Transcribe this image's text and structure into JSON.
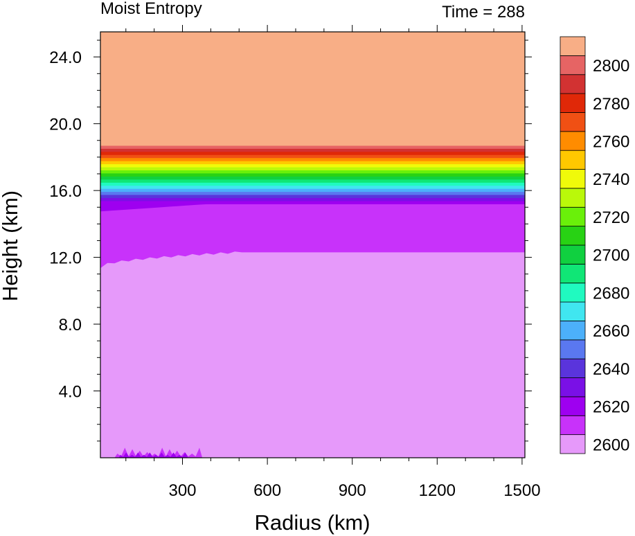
{
  "chart_data": {
    "type": "heatmap",
    "title_left": "Moist Entropy",
    "title_right": "Time = 288",
    "xlabel": "Radius (km)",
    "ylabel": "Height (km)",
    "xlim": [
      10,
      1510
    ],
    "ylim": [
      0,
      25.5
    ],
    "x_ticks": [
      300,
      600,
      900,
      1200,
      1500
    ],
    "x_tick_labels": [
      "300",
      "600",
      "900",
      "1200",
      "1500"
    ],
    "y_ticks": [
      4,
      8,
      12,
      16,
      20,
      24
    ],
    "y_tick_labels": [
      "4.0",
      "8.0",
      "12.0",
      "16.0",
      "20.0",
      "24.0"
    ],
    "colorbar": {
      "levels": [
        2600,
        2610,
        2620,
        2630,
        2640,
        2650,
        2660,
        2670,
        2680,
        2690,
        2700,
        2710,
        2720,
        2730,
        2740,
        2750,
        2760,
        2770,
        2780,
        2790,
        2800
      ],
      "labels": [
        "2600",
        "2620",
        "2640",
        "2660",
        "2680",
        "2700",
        "2720",
        "2740",
        "2760",
        "2780",
        "2800"
      ],
      "colors": [
        "#E699FA",
        "#C832FA",
        "#9E00F0",
        "#7A10E6",
        "#5A34DC",
        "#5A78F0",
        "#4CB0FA",
        "#40E6F0",
        "#20FAC0",
        "#10E676",
        "#10D040",
        "#28D214",
        "#6AF00A",
        "#BAF80A",
        "#F0FA0A",
        "#FFC800",
        "#FF8C00",
        "#F05014",
        "#E02808",
        "#D23232",
        "#E66464",
        "#F8AE86"
      ]
    },
    "fields": {
      "upper_region_value": ">2800",
      "upper_region_bottom_km": 18.7,
      "gradient_band_km": [
        15.2,
        18.7
      ],
      "mid_band_value": "2600-2610",
      "mid_band_bottom_km_at_center": 11.4,
      "mid_band_bottom_km_outer": 12.3,
      "lower_region_value": "<2600",
      "surface_perturbation_x_km": [
        70,
        360
      ]
    }
  }
}
